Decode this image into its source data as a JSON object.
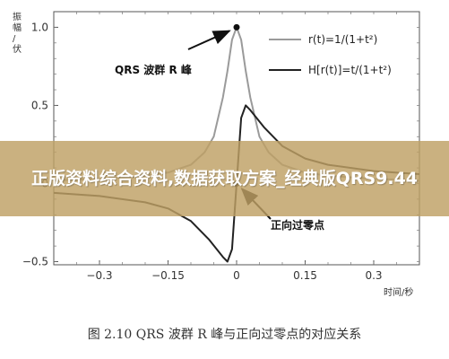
{
  "chart_data": {
    "type": "line",
    "xlabel": "时间/秒",
    "ylabel": "振幅/伏",
    "xlim": [
      -0.4,
      0.4
    ],
    "ylim": [
      -0.52,
      1.1
    ],
    "x_ticks": [
      -0.3,
      -0.15,
      0,
      0.15,
      0.3
    ],
    "x_tick_labels": [
      "−0.3",
      "−0.15",
      "0",
      "0.15",
      "0.3"
    ],
    "y_ticks": [
      -0.5,
      0,
      0.5,
      1.0
    ],
    "y_tick_labels": [
      "−0.5",
      "0",
      "0.5",
      "1.0"
    ],
    "series": [
      {
        "name": "r(t)=1/(1+t²)",
        "color": "#9a9a9a",
        "x": [
          -0.4,
          -0.3,
          -0.2,
          -0.15,
          -0.1,
          -0.07,
          -0.05,
          -0.03,
          -0.02,
          -0.01,
          0,
          0.01,
          0.02,
          0.03,
          0.05,
          0.07,
          0.1,
          0.15,
          0.2,
          0.3,
          0.4
        ],
        "y": [
          0.02,
          0.03,
          0.05,
          0.07,
          0.12,
          0.2,
          0.3,
          0.55,
          0.72,
          0.92,
          1.0,
          0.92,
          0.72,
          0.55,
          0.3,
          0.2,
          0.12,
          0.07,
          0.05,
          0.03,
          0.02
        ]
      },
      {
        "name": "H[r(t)]=t/(1+t²)",
        "color": "#222222",
        "x": [
          -0.4,
          -0.3,
          -0.2,
          -0.15,
          -0.1,
          -0.06,
          -0.03,
          -0.02,
          -0.01,
          0,
          0.01,
          0.02,
          0.03,
          0.06,
          0.1,
          0.15,
          0.2,
          0.3,
          0.4
        ],
        "y": [
          -0.06,
          -0.08,
          -0.12,
          -0.16,
          -0.24,
          -0.36,
          -0.47,
          -0.5,
          -0.42,
          0,
          0.42,
          0.5,
          0.47,
          0.36,
          0.24,
          0.16,
          0.12,
          0.08,
          0.06
        ]
      }
    ],
    "peak_marker": [
      0,
      1.0
    ],
    "zero_marker": [
      0,
      0
    ],
    "annotations": [
      {
        "text": "QRS 波群 R 峰"
      },
      {
        "text": "正向过零点"
      }
    ],
    "legend": "top-right"
  },
  "overlay": {
    "banner_text": "正版资料综合资料,数据获取方案_经典版QRS9.44"
  },
  "caption": "图 2.10    QRS 波群 R 峰与正向过零点的对应关系"
}
